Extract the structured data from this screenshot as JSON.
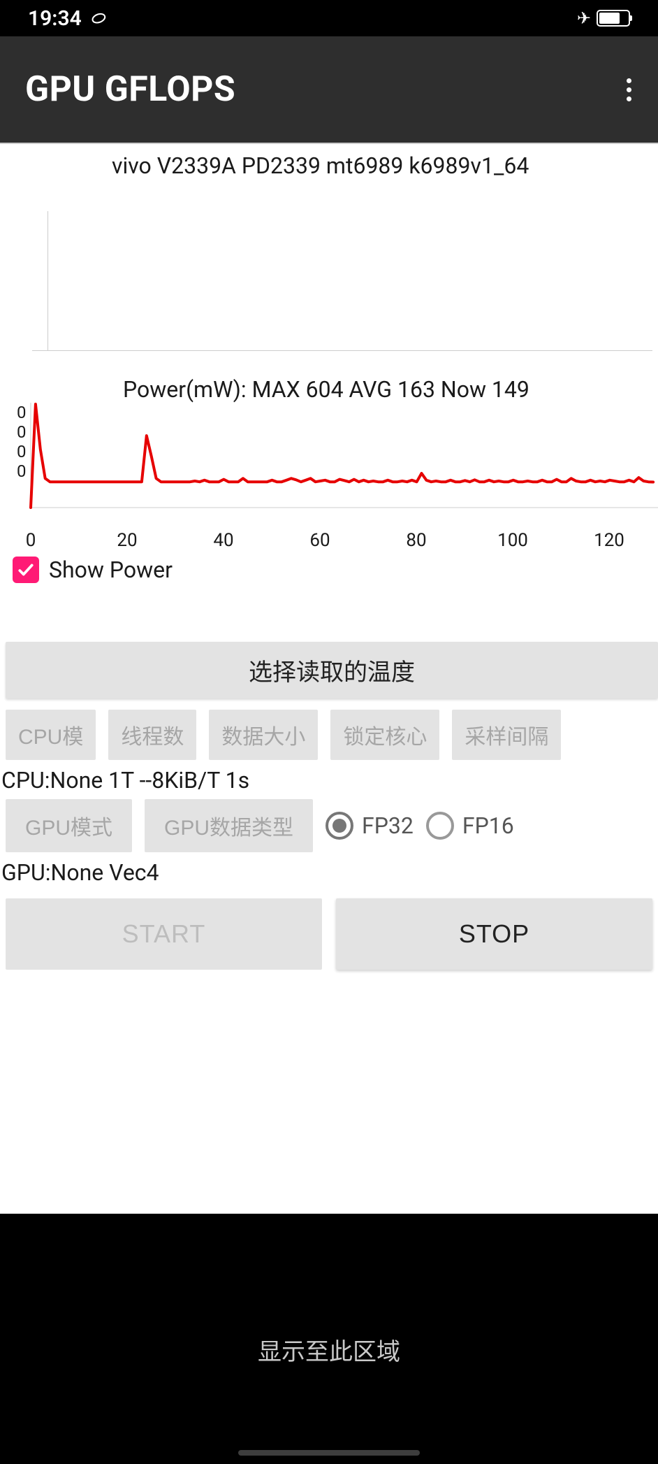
{
  "status_bar": {
    "time": "19:34",
    "battery_pct": 72,
    "airplane_mode": true
  },
  "app_bar": {
    "title": "GPU GFLOPS"
  },
  "device_line": "vivo V2339A PD2339 mt6989 k6989v1_64",
  "blank_chart": {
    "axis_color": "#cccccc"
  },
  "power_chart": {
    "type": "line",
    "title": "Power(mW): MAX 604 AVG 163 Now 149",
    "line_color": "#e60000",
    "line_width": 4,
    "background_color": "#ffffff",
    "axis_color": "#cccccc",
    "xlim": [
      0,
      130
    ],
    "x_ticks": [
      0,
      20,
      40,
      60,
      80,
      100,
      120
    ],
    "y_tick_labels": [
      "0",
      "0",
      "0",
      "0"
    ],
    "y_baseline": 120,
    "y_spike_top": 0,
    "values": [
      0,
      604,
      340,
      170,
      150,
      150,
      150,
      150,
      150,
      150,
      150,
      150,
      150,
      150,
      150,
      150,
      150,
      150,
      150,
      150,
      150,
      150,
      150,
      150,
      420,
      300,
      170,
      150,
      150,
      150,
      150,
      150,
      150,
      150,
      155,
      150,
      160,
      150,
      150,
      150,
      165,
      150,
      150,
      150,
      170,
      150,
      150,
      150,
      150,
      150,
      160,
      150,
      150,
      160,
      170,
      162,
      150,
      160,
      170,
      150,
      155,
      160,
      150,
      150,
      165,
      158,
      150,
      165,
      150,
      160,
      150,
      155,
      150,
      150,
      160,
      150,
      150,
      155,
      150,
      160,
      150,
      200,
      160,
      150,
      155,
      150,
      150,
      160,
      150,
      150,
      158,
      150,
      162,
      150,
      150,
      160,
      150,
      155,
      150,
      150,
      160,
      150,
      150,
      155,
      150,
      150,
      160,
      150,
      150,
      165,
      150,
      150,
      170,
      155,
      150,
      150,
      160,
      150,
      155,
      150,
      160,
      155,
      150,
      150,
      160,
      150,
      175,
      155,
      150,
      149
    ],
    "value_max_for_scale": 604
  },
  "show_power": {
    "label": "Show Power",
    "checked": true,
    "check_color": "#ff1a75"
  },
  "buttons": {
    "select_temp": "选择读取的温度",
    "cpu_mode": "CPU模",
    "threads": "线程数",
    "data_size": "数据大小",
    "lock_core": "锁定核心",
    "sample_interval": "采样间隔",
    "gpu_mode": "GPU模式",
    "gpu_dtype": "GPU数据类型",
    "start": "START",
    "stop": "STOP"
  },
  "cpu_status": "CPU:None 1T --8KiB/T 1s",
  "gpu_status": "GPU:None Vec4",
  "radios": {
    "fp32": "FP32",
    "fp16": "FP16",
    "selected": "fp32"
  },
  "bottom_panel": {
    "text": "显示至此区域"
  },
  "colors": {
    "status_bg": "#000000",
    "appbar_bg": "#2e2e2e",
    "content_bg": "#ffffff",
    "btn_bg": "#e3e3e3",
    "btn_text": "#555555",
    "btn_disabled_text": "#a6a6a6",
    "accent": "#ff1a75",
    "bottom_bg": "#000000"
  }
}
